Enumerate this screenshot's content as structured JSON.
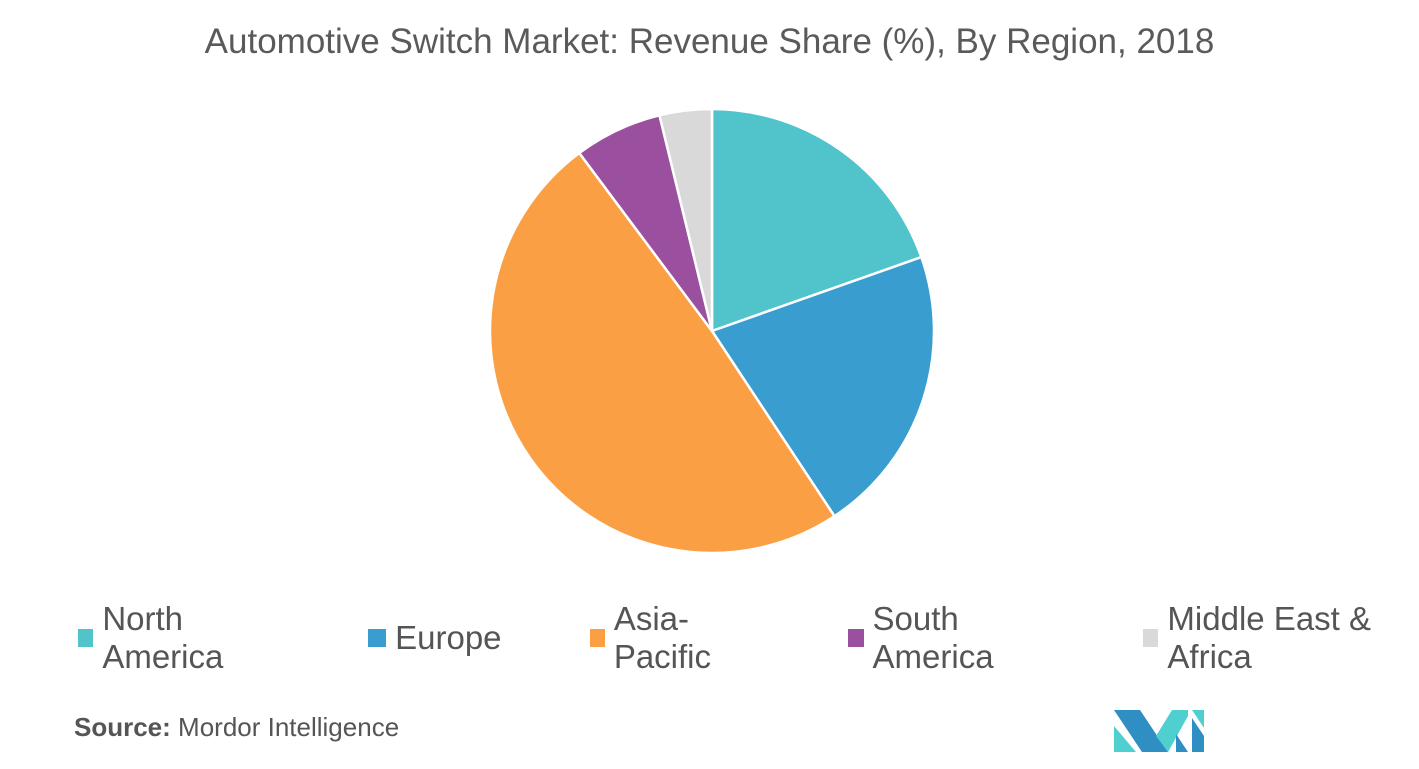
{
  "chart_data": {
    "type": "pie",
    "title": "Automotive Switch Market: Revenue Share (%),  By Region, 2018",
    "categories": [
      "North America",
      "Europe",
      "Asia-Pacific",
      "South America",
      "Middle East & Africa"
    ],
    "values": [
      19.6,
      21.1,
      49.1,
      6.4,
      3.8
    ],
    "colors": [
      "#50c4ca",
      "#3a9dd0",
      "#fb9f44",
      "#9a4f9f",
      "#d9d9d9"
    ],
    "legend_position": "bottom"
  },
  "source": {
    "label": "Source:",
    "text": " Mordor Intelligence"
  }
}
